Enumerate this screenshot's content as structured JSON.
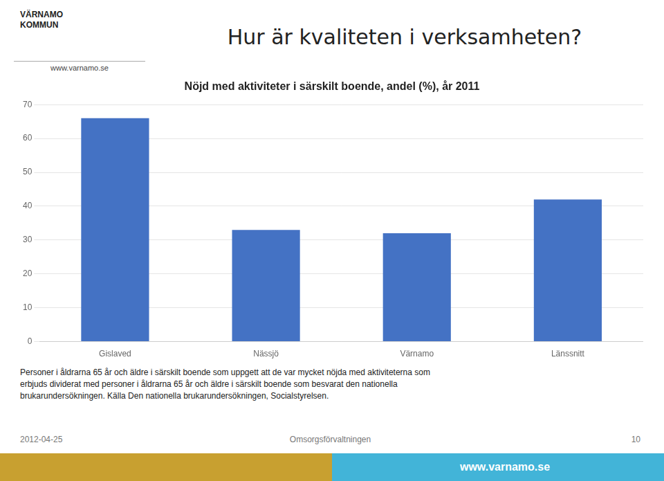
{
  "chart_data": {
    "type": "bar",
    "title": "Nöjd med aktiviteter i särskilt boende, andel (%), år 2011",
    "subtitle": "Hur är kvaliteten i verksamheten?",
    "categories": [
      "Gislaved",
      "Nässjö",
      "Värnamo",
      "Länssnitt"
    ],
    "values": [
      66,
      33,
      32,
      42
    ],
    "color": "#4472C4",
    "ylim": [
      0,
      70
    ],
    "yticks": [
      0,
      10,
      20,
      30,
      40,
      50,
      60,
      70
    ],
    "grid": true,
    "annotations": [
      "VÄRNAMO",
      "KOMMUN",
      "www.varnamo.se",
      "Personer i åldrarna 65 år och äldre i särskilt boende som uppgett att de var mycket nöjda med aktiviteterna som",
      "erbjuds dividerat med personer i åldrarna 65 år och äldre i särskilt boende som besvarat den nationella",
      "brukarundersökningen. Källa Den nationella brukarundersökningen, Socialstyrelsen.",
      "2012-04-25",
      "Omsorgsförvaltningen",
      "10",
      "www.varnamo.se"
    ]
  }
}
